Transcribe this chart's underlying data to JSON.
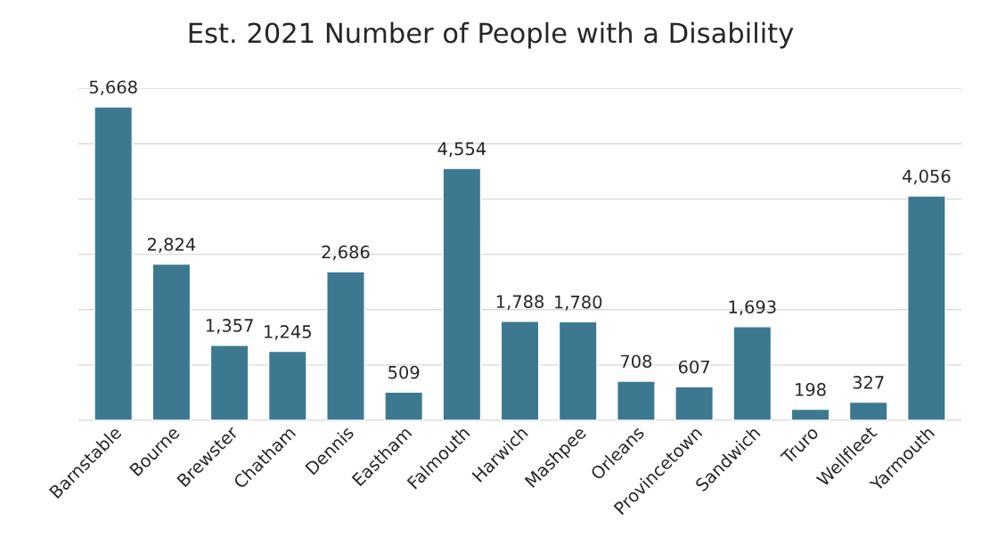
{
  "chart_data": {
    "type": "bar",
    "title": "Est. 2021 Number of People with a Disability",
    "categories": [
      "Barnstable",
      "Bourne",
      "Brewster",
      "Chatham",
      "Dennis",
      "Eastham",
      "Falmouth",
      "Harwich",
      "Mashpee",
      "Orleans",
      "Provincetown",
      "Sandwich",
      "Truro",
      "Wellfleet",
      "Yarmouth"
    ],
    "values": [
      5668,
      2824,
      1357,
      1245,
      2686,
      509,
      4554,
      1788,
      1780,
      708,
      607,
      1693,
      198,
      327,
      4056
    ],
    "value_labels": [
      "5,668",
      "2,824",
      "1,357",
      "1,245",
      "2,686",
      "509",
      "4,554",
      "1,788",
      "1,780",
      "708",
      "607",
      "1,693",
      "198",
      "327",
      "4,056"
    ],
    "color": "#3d7891",
    "ylim": [
      0,
      6000
    ],
    "yticks": [
      {
        "value": 0,
        "label": null
      },
      {
        "value": 1000,
        "label": null
      },
      {
        "value": 2000,
        "label": null
      },
      {
        "value": 3000,
        "label": null
      },
      {
        "value": 4000,
        "label": null
      },
      {
        "value": 5000,
        "label": null
      },
      {
        "value": 6000,
        "label": null
      }
    ],
    "grid": "y",
    "tick_labels": "x"
  }
}
